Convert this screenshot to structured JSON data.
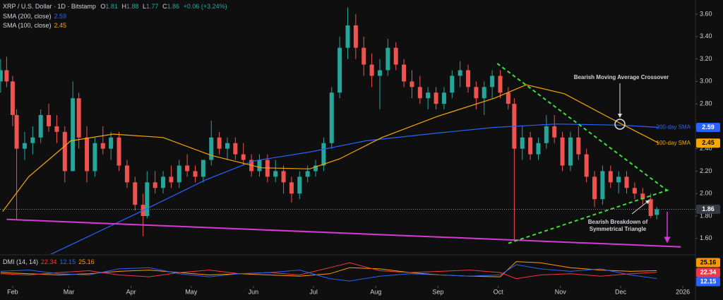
{
  "chart_data": {
    "type": "candlestick",
    "title": "XRP / U.S. Dollar · 1D · Bitstamp",
    "ohlc_labels": [
      "O",
      "H",
      "L",
      "C"
    ],
    "change": "+0.06 (+3.24%)",
    "up_color": "#26a69a",
    "down_color": "#ef5350",
    "x": [
      26,
      29,
      32,
      34,
      38,
      42,
      46,
      50,
      54,
      58,
      62,
      65,
      69,
      73,
      77,
      81,
      85,
      89,
      93,
      97,
      99,
      103,
      107,
      111,
      115,
      119,
      123,
      127,
      131,
      135,
      139,
      143,
      147,
      151,
      155,
      159,
      163,
      167,
      171,
      175,
      179,
      183,
      187,
      191,
      195,
      199,
      203,
      207,
      211,
      215,
      219,
      223,
      227,
      231,
      235,
      239,
      243,
      247,
      251,
      255,
      259,
      263,
      267,
      271,
      275,
      279,
      282,
      286,
      290,
      294,
      298,
      302,
      306,
      310,
      314,
      318,
      322,
      326,
      330,
      334,
      338,
      342,
      346,
      350,
      353
    ],
    "open": [
      3.0,
      3.1,
      3.0,
      2.7,
      2.4,
      2.45,
      2.5,
      2.7,
      2.6,
      2.55,
      2.2,
      2.85,
      2.5,
      2.2,
      2.45,
      2.4,
      2.5,
      2.25,
      2.1,
      1.9,
      1.8,
      2.1,
      2.05,
      2.15,
      2.1,
      2.25,
      2.2,
      2.15,
      2.3,
      2.5,
      2.4,
      2.45,
      2.35,
      2.3,
      2.2,
      2.3,
      2.15,
      2.2,
      2.1,
      2.0,
      2.15,
      2.2,
      2.25,
      2.45,
      2.9,
      3.3,
      3.5,
      3.3,
      3.15,
      3.05,
      3.1,
      3.3,
      3.15,
      3.0,
      2.95,
      2.85,
      2.9,
      2.8,
      2.9,
      3.05,
      3.1,
      2.95,
      2.85,
      2.95,
      3.05,
      2.9,
      2.8,
      2.4,
      2.5,
      2.35,
      2.45,
      2.6,
      2.5,
      2.25,
      2.5,
      2.35,
      2.15,
      1.95,
      2.2,
      2.1,
      2.15,
      2.05,
      2.0,
      1.95,
      1.81
    ],
    "high": [
      3.2,
      3.22,
      3.05,
      2.75,
      2.55,
      2.6,
      2.75,
      2.8,
      2.7,
      2.6,
      3.0,
      2.9,
      2.6,
      2.5,
      2.6,
      2.55,
      2.55,
      2.3,
      2.15,
      2.0,
      2.2,
      2.2,
      2.2,
      2.25,
      2.3,
      2.35,
      2.25,
      2.3,
      2.65,
      2.55,
      2.5,
      2.5,
      2.45,
      2.35,
      2.35,
      2.35,
      2.3,
      2.25,
      2.15,
      2.2,
      2.25,
      2.3,
      2.5,
      2.95,
      3.4,
      3.66,
      3.6,
      3.4,
      3.25,
      3.2,
      3.38,
      3.35,
      3.2,
      3.1,
      3.05,
      2.95,
      2.95,
      2.95,
      3.1,
      3.18,
      3.15,
      3.0,
      3.0,
      3.1,
      3.1,
      2.95,
      2.85,
      2.6,
      2.55,
      2.5,
      2.7,
      2.7,
      2.55,
      2.55,
      2.6,
      2.4,
      2.2,
      2.25,
      2.25,
      2.2,
      2.2,
      2.1,
      2.05,
      2.0,
      1.88
    ],
    "low": [
      2.9,
      2.95,
      2.6,
      1.77,
      2.3,
      2.35,
      2.45,
      2.55,
      2.45,
      2.1,
      2.2,
      2.4,
      2.1,
      2.15,
      2.35,
      2.3,
      2.2,
      2.05,
      1.85,
      1.62,
      1.78,
      2.0,
      2.0,
      2.05,
      2.05,
      2.15,
      2.1,
      2.1,
      2.25,
      2.35,
      2.3,
      2.3,
      2.25,
      2.15,
      2.15,
      2.1,
      2.1,
      2.0,
      1.92,
      1.95,
      2.1,
      2.15,
      2.2,
      2.4,
      2.85,
      3.2,
      3.2,
      3.05,
      2.95,
      2.75,
      3.05,
      3.1,
      2.95,
      2.85,
      2.8,
      2.75,
      2.75,
      2.75,
      2.85,
      2.95,
      2.9,
      2.75,
      2.7,
      2.85,
      2.85,
      2.75,
      1.58,
      2.3,
      2.3,
      2.3,
      2.4,
      2.45,
      2.2,
      2.2,
      2.3,
      2.1,
      1.88,
      1.9,
      2.05,
      2.0,
      2.0,
      1.95,
      1.9,
      1.78,
      1.77
    ],
    "close": [
      3.1,
      3.0,
      2.7,
      2.4,
      2.45,
      2.5,
      2.7,
      2.6,
      2.55,
      2.2,
      2.85,
      2.5,
      2.2,
      2.45,
      2.4,
      2.5,
      2.25,
      2.1,
      1.9,
      1.8,
      2.1,
      2.05,
      2.15,
      2.1,
      2.25,
      2.2,
      2.15,
      2.3,
      2.5,
      2.4,
      2.45,
      2.35,
      2.3,
      2.2,
      2.3,
      2.15,
      2.2,
      2.1,
      2.0,
      2.15,
      2.2,
      2.25,
      2.45,
      2.9,
      3.3,
      3.5,
      3.3,
      3.15,
      3.05,
      3.1,
      3.3,
      3.15,
      3.0,
      2.95,
      2.85,
      2.9,
      2.8,
      2.9,
      3.05,
      3.1,
      2.95,
      2.85,
      2.95,
      3.05,
      2.9,
      2.8,
      2.4,
      2.5,
      2.35,
      2.45,
      2.6,
      2.5,
      2.25,
      2.5,
      2.35,
      2.15,
      1.95,
      2.2,
      2.1,
      2.15,
      2.05,
      2.0,
      1.95,
      1.8,
      1.86
    ],
    "xlim": [
      25.7,
      372.3
    ],
    "ylim": [
      1.46,
      3.726
    ],
    "xticks": [
      {
        "value": 32,
        "label": "Feb"
      },
      {
        "value": 60,
        "label": "Mar"
      },
      {
        "value": 91,
        "label": "Apr"
      },
      {
        "value": 121,
        "label": "May"
      },
      {
        "value": 152,
        "label": "Jun"
      },
      {
        "value": 182,
        "label": "Jul"
      },
      {
        "value": 213,
        "label": "Aug"
      },
      {
        "value": 244,
        "label": "Sep"
      },
      {
        "value": 274,
        "label": "Oct"
      },
      {
        "value": 305,
        "label": "Nov"
      },
      {
        "value": 335,
        "label": "Dec"
      },
      {
        "value": 366,
        "label": "2026"
      }
    ],
    "yticks": [
      {
        "value": 1.6,
        "label": "1.60"
      },
      {
        "value": 1.8,
        "label": "1.80"
      },
      {
        "value": 2.0,
        "label": "2.00"
      },
      {
        "value": 2.2,
        "label": "2.20"
      },
      {
        "value": 2.4,
        "label": "2.40"
      },
      {
        "value": 2.6,
        "label": "2.60"
      },
      {
        "value": 2.8,
        "label": "2.80"
      },
      {
        "value": 3.0,
        "label": "3.00"
      },
      {
        "value": 3.2,
        "label": "3.20"
      },
      {
        "value": 3.4,
        "label": "3.40"
      },
      {
        "value": 3.6,
        "label": "3.60"
      }
    ],
    "overlays": [
      {
        "name": "SMA (200, close)",
        "label": "200-day SMA",
        "color": "#2962ff",
        "x": [
          50,
          96,
          128,
          152,
          180,
          208,
          244,
          272,
          303,
          335,
          354
        ],
        "values": [
          1.45,
          1.84,
          2.12,
          2.29,
          2.37,
          2.47,
          2.54,
          2.59,
          2.62,
          2.61,
          2.59
        ]
      },
      {
        "name": "SMA (100, close)",
        "label": "100-day SMA",
        "color": "#f7a600",
        "x": [
          27,
          40,
          61,
          82,
          107,
          131,
          156,
          180,
          195,
          216,
          244,
          272,
          288,
          307,
          328,
          354
        ],
        "values": [
          1.84,
          2.15,
          2.47,
          2.53,
          2.5,
          2.34,
          2.23,
          2.22,
          2.31,
          2.5,
          2.69,
          2.85,
          2.97,
          2.89,
          2.69,
          2.45
        ]
      }
    ],
    "trendlines": [
      {
        "color": "#d63ad6",
        "dashed": false,
        "x": [
          29,
          365
        ],
        "y": [
          1.77,
          1.525
        ]
      },
      {
        "color": "#3ce03c",
        "dashed": true,
        "x": [
          273.5,
          358
        ],
        "y": [
          3.16,
          2.03
        ]
      },
      {
        "color": "#3ce03c",
        "dashed": true,
        "x": [
          279,
          360
        ],
        "y": [
          1.556,
          2.04
        ]
      }
    ],
    "annotations": [
      "Bearish Moving Average Crossover",
      "Bearish Breakdown of",
      "Symmetrical Triangle"
    ],
    "dmi": {
      "name": "DMI (14, 14)",
      "ylim": [
        0,
        50
      ],
      "x": [
        26,
        40,
        55,
        70,
        85,
        100,
        115,
        130,
        145,
        160,
        175,
        190,
        200,
        215,
        230,
        245,
        260,
        275,
        283,
        295,
        310,
        325,
        340,
        353
      ],
      "series": [
        {
          "color": "#ff9800",
          "values": [
            22,
            20,
            18,
            20,
            24,
            26,
            22,
            18,
            20,
            18,
            16,
            20,
            30,
            28,
            22,
            18,
            16,
            15,
            40,
            38,
            30,
            26,
            24,
            25.16
          ]
        },
        {
          "color": "#f23645",
          "values": [
            20,
            18,
            22,
            25,
            18,
            15,
            22,
            26,
            20,
            22,
            18,
            30,
            38,
            25,
            22,
            24,
            26,
            22,
            12,
            18,
            20,
            16,
            20,
            22.34
          ]
        },
        {
          "color": "#2962ff",
          "values": [
            24,
            26,
            20,
            18,
            28,
            30,
            20,
            15,
            20,
            22,
            26,
            12,
            8,
            16,
            20,
            18,
            16,
            18,
            35,
            28,
            24,
            28,
            18,
            12.15
          ]
        }
      ]
    }
  }
}
